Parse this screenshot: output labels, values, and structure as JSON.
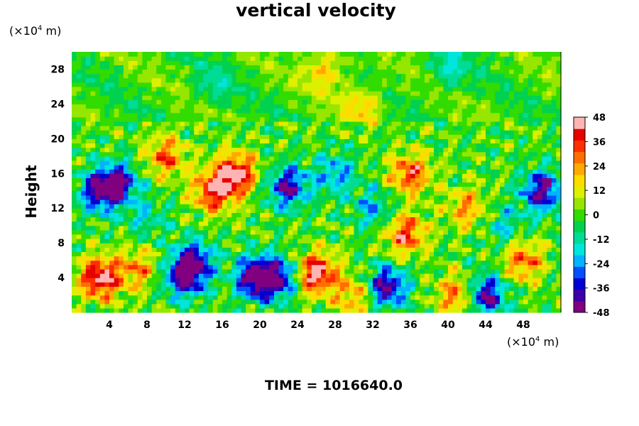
{
  "chart_data": {
    "type": "heatmap",
    "title": "vertical velocity",
    "ylabel": "Height",
    "y_unit": {
      "prefix": "(×10",
      "exponent": "4",
      "suffix": " m)"
    },
    "x_unit": {
      "prefix": "(×10",
      "exponent": "4",
      "suffix": " m)"
    },
    "xlim": [
      0,
      52
    ],
    "ylim": [
      0,
      30
    ],
    "x_ticks": [
      "4",
      "8",
      "12",
      "16",
      "20",
      "24",
      "28",
      "32",
      "36",
      "40",
      "44",
      "48"
    ],
    "y_ticks": [
      "4",
      "8",
      "12",
      "16",
      "20",
      "24",
      "28"
    ],
    "colorbar": {
      "range": [
        -48,
        48
      ],
      "tick_labels": [
        "48",
        "36",
        "24",
        "12",
        "0",
        "-12",
        "-24",
        "-36",
        "-48"
      ],
      "colors": [
        "#800080",
        "#3c00aa",
        "#0000d2",
        "#0050ff",
        "#00b4ff",
        "#00e6dc",
        "#00dc96",
        "#00d250",
        "#32dc00",
        "#96e600",
        "#dcf000",
        "#ffdc00",
        "#ffaa00",
        "#ff6e00",
        "#ff2d00",
        "#e60000",
        "#ffb4b4"
      ]
    },
    "features": [
      {
        "x": 3,
        "y": 4,
        "value": 48
      },
      {
        "x": 7,
        "y": 5,
        "value": 24
      },
      {
        "x": 12,
        "y": 4,
        "value": -40
      },
      {
        "x": 13,
        "y": 6,
        "value": -36
      },
      {
        "x": 15,
        "y": 14,
        "value": 40
      },
      {
        "x": 17.5,
        "y": 16,
        "value": 48
      },
      {
        "x": 19.5,
        "y": 4,
        "value": -48
      },
      {
        "x": 22,
        "y": 4,
        "value": -40
      },
      {
        "x": 26,
        "y": 4.5,
        "value": 48
      },
      {
        "x": 30,
        "y": 2,
        "value": 24
      },
      {
        "x": 33.5,
        "y": 3,
        "value": -44
      },
      {
        "x": 35.5,
        "y": 9,
        "value": 36
      },
      {
        "x": 23,
        "y": 14.5,
        "value": -40
      },
      {
        "x": 5,
        "y": 15,
        "value": -36
      },
      {
        "x": 3,
        "y": 14,
        "value": -40
      },
      {
        "x": 36,
        "y": 16,
        "value": 36
      },
      {
        "x": 41,
        "y": 2,
        "value": 30
      },
      {
        "x": 44,
        "y": 2,
        "value": -44
      },
      {
        "x": 48,
        "y": 6,
        "value": 30
      },
      {
        "x": 50,
        "y": 14,
        "value": -44
      },
      {
        "x": 28,
        "y": 16,
        "value": -24
      },
      {
        "x": 10,
        "y": 18,
        "value": 30
      },
      {
        "x": 32,
        "y": 12,
        "value": -20
      },
      {
        "x": 42,
        "y": 12,
        "value": 24
      },
      {
        "x": 46,
        "y": 10,
        "value": -16
      },
      {
        "x": 8,
        "y": 11,
        "value": -14
      },
      {
        "x": 27,
        "y": 28,
        "value": 20
      },
      {
        "x": 31,
        "y": 24,
        "value": 18
      },
      {
        "x": 15,
        "y": 26,
        "value": -10
      },
      {
        "x": 40,
        "y": 28,
        "value": -14
      }
    ]
  },
  "footer": {
    "time_label": "TIME = 1016640.0"
  }
}
